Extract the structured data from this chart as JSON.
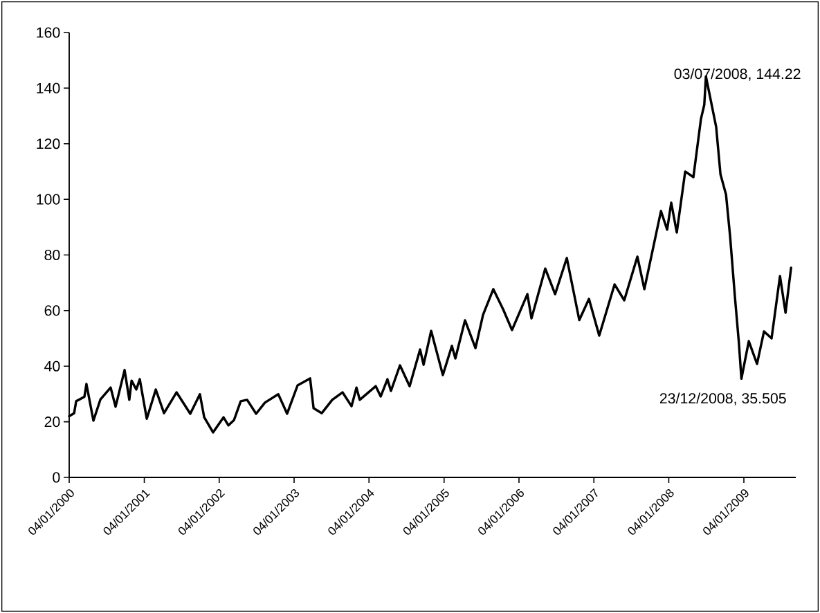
{
  "chart_data": {
    "type": "line",
    "x": [
      "2000-01-04",
      "2000-01-28",
      "2000-02-07",
      "2000-03-18",
      "2000-03-28",
      "2000-05-01",
      "2000-06-04",
      "2000-07-24",
      "2000-08-17",
      "2000-09-30",
      "2000-10-23",
      "2000-11-03",
      "2000-11-26",
      "2000-12-13",
      "2001-01-16",
      "2001-03-01",
      "2001-04-10",
      "2001-06-10",
      "2001-08-16",
      "2001-10-02",
      "2001-10-23",
      "2001-12-05",
      "2002-01-25",
      "2002-02-18",
      "2002-03-17",
      "2002-04-19",
      "2002-05-20",
      "2002-07-03",
      "2002-08-15",
      "2002-10-19",
      "2002-12-01",
      "2003-01-21",
      "2003-03-23",
      "2003-04-09",
      "2003-05-19",
      "2003-07-09",
      "2003-08-28",
      "2003-10-11",
      "2003-11-04",
      "2003-11-20",
      "2004-02-06",
      "2004-03-01",
      "2004-04-03",
      "2004-04-20",
      "2004-06-03",
      "2004-07-20",
      "2004-09-09",
      "2004-09-26",
      "2004-11-02",
      "2004-12-29",
      "2005-02-11",
      "2005-02-28",
      "2005-04-16",
      "2005-06-06",
      "2005-07-13",
      "2005-09-01",
      "2005-10-19",
      "2005-12-01",
      "2006-02-14",
      "2006-03-06",
      "2006-05-12",
      "2006-06-29",
      "2006-08-25",
      "2006-10-25",
      "2006-12-11",
      "2007-01-30",
      "2007-04-15",
      "2007-06-01",
      "2007-08-04",
      "2007-09-07",
      "2007-10-17",
      "2007-11-27",
      "2007-12-27",
      "2008-01-16",
      "2008-02-12",
      "2008-03-24",
      "2008-05-03",
      "2008-06-09",
      "2008-06-25",
      "2008-07-03",
      "2008-08-22",
      "2008-09-12",
      "2008-10-09",
      "2008-10-29",
      "2008-11-21",
      "2008-12-10",
      "2008-12-23",
      "2009-01-28",
      "2009-03-09",
      "2009-04-12",
      "2009-05-19",
      "2009-06-29",
      "2009-07-26",
      "2009-08-22"
    ],
    "series": [
      {
        "color": "#000000",
        "values": [
          22,
          23.1,
          27.4,
          29,
          33.6,
          20.4,
          28,
          32.3,
          25.4,
          38.6,
          27.9,
          34.8,
          31.6,
          35.3,
          21.1,
          31.6,
          23.1,
          30.6,
          22.9,
          29.9,
          21.6,
          16.2,
          21.6,
          18.7,
          20.6,
          27.4,
          27.9,
          22.9,
          26.9,
          29.9,
          22.9,
          33.1,
          35.6,
          24.9,
          23.1,
          27.9,
          30.6,
          25.6,
          32.3,
          27.9,
          32.8,
          29.1,
          35.3,
          31.1,
          40.3,
          32.8,
          46,
          40.5,
          52.7,
          36.8,
          47.3,
          42.8,
          56.5,
          46.5,
          58.5,
          67.7,
          60.4,
          53,
          65.9,
          57.2,
          75.1,
          65.9,
          78.9,
          56.6,
          64.2,
          51,
          69.4,
          63.7,
          79.4,
          67.7,
          81.6,
          95.8,
          89.1,
          98.8,
          88.1,
          110,
          108,
          129,
          134,
          144.22,
          126,
          109,
          101.7,
          86.6,
          65.2,
          49,
          35.505,
          49,
          40.8,
          52.5,
          50,
          72.4,
          59.2,
          75.4
        ]
      }
    ],
    "xlim": [
      "2000-01-04",
      "2009-09-14"
    ],
    "xticks": [
      {
        "value": "2000-01-04",
        "label": "04/01/2000"
      },
      {
        "value": "2001-01-04",
        "label": "04/01/2001"
      },
      {
        "value": "2002-01-04",
        "label": "04/01/2002"
      },
      {
        "value": "2003-01-04",
        "label": "04/01/2003"
      },
      {
        "value": "2004-01-04",
        "label": "04/01/2004"
      },
      {
        "value": "2005-01-04",
        "label": "04/01/2005"
      },
      {
        "value": "2006-01-04",
        "label": "04/01/2006"
      },
      {
        "value": "2007-01-04",
        "label": "04/01/2007"
      },
      {
        "value": "2008-01-04",
        "label": "04/01/2008"
      },
      {
        "value": "2009-01-04",
        "label": "04/01/2009"
      }
    ],
    "ylim": [
      0,
      160
    ],
    "yticks": [
      0,
      20,
      40,
      60,
      80,
      100,
      120,
      140,
      160
    ],
    "annotations": [
      {
        "text": "03/07/2008, 144.22",
        "x": "2008-07-03",
        "y": 144.22
      },
      {
        "text": "23/12/2008, 35.505",
        "x": "2008-12-23",
        "y": 35.505
      }
    ]
  }
}
